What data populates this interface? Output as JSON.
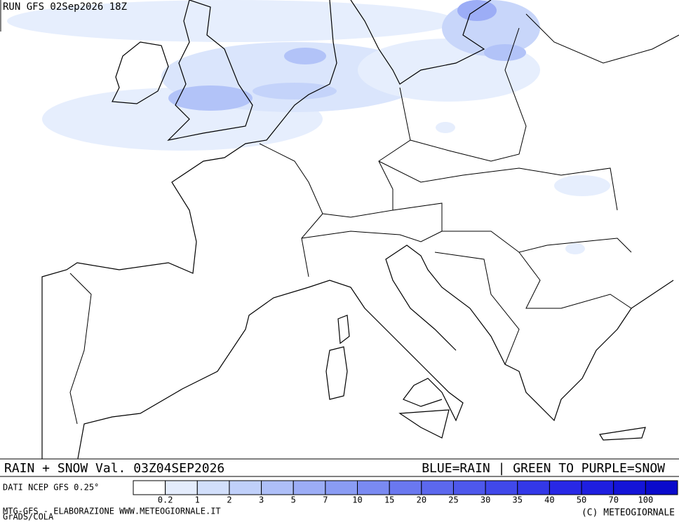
{
  "header": {
    "run": "RUN GFS 02Sep2026 18Z"
  },
  "footer": {
    "title": "RAIN + SNOW Val. 03Z04SEP2026",
    "key": "BLUE=RAIN | GREEN TO PURPLE=SNOW",
    "source": "DATI NCEP GFS 0.25°",
    "model": "MTG-GFS - ELABORAZIONE WWW.METEOGIORNALE.IT",
    "grads": "GrADS/COLA",
    "copyright": "(C) METEOGIORNALE"
  },
  "legend": {
    "levels": [
      "0.2",
      "1",
      "2",
      "3",
      "5",
      "7",
      "10",
      "15",
      "20",
      "25",
      "30",
      "35",
      "40",
      "50",
      "70",
      "100"
    ],
    "colors": [
      "#ffffff",
      "#e4ecfc",
      "#d2dffb",
      "#c0d0fa",
      "#aebff8",
      "#9cadf6",
      "#8a9cf4",
      "#7a8af2",
      "#6a78f0",
      "#5c68ee",
      "#4e58ec",
      "#4048ea",
      "#3338e8",
      "#2828e6",
      "#1e1ee0",
      "#1414d8",
      "#0a0acc"
    ]
  }
}
